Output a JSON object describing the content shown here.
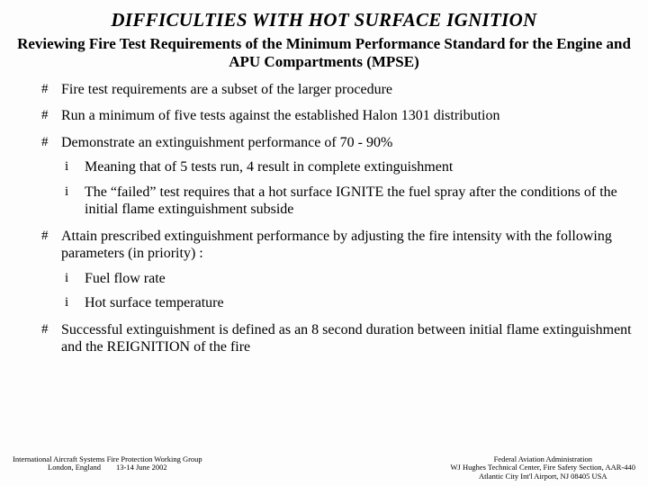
{
  "title": "DIFFICULTIES WITH HOT SURFACE IGNITION",
  "subtitle": "Reviewing Fire Test Requirements of the Minimum Performance Standard for the Engine and APU Compartments (MPSE)",
  "bullets": {
    "glyph_lvl1": "#",
    "glyph_lvl2": "i",
    "items": [
      {
        "text": "Fire test requirements are a subset of the larger procedure"
      },
      {
        "text": "Run a minimum of five tests against the established Halon 1301 distribution"
      },
      {
        "text": "Demonstrate an extinguishment performance of 70 - 90%",
        "sub": [
          {
            "text": "Meaning that of 5 tests run, 4 result in complete extinguishment"
          },
          {
            "text": "The “failed” test requires that a hot surface IGNITE the fuel spray after the conditions of the initial flame extinguishment subside"
          }
        ]
      },
      {
        "text": "Attain prescribed extinguishment performance by adjusting the fire intensity with the following parameters (in priority) :",
        "sub": [
          {
            "text": "Fuel flow rate"
          },
          {
            "text": "Hot surface temperature"
          }
        ]
      },
      {
        "text": "Successful extinguishment is defined as an 8 second duration between initial flame extinguishment and the REIGNITION of the fire"
      }
    ]
  },
  "footer": {
    "left_line1": "International Aircraft Systems Fire Protection Working Group",
    "left_line2": "London, England  13-14 June 2002",
    "right_line1": "Federal Aviation Administration",
    "right_line2": "WJ Hughes Technical Center, Fire Safety Section, AAR-440",
    "right_line3": "Atlantic City Int'l Airport, NJ 08405  USA"
  },
  "colors": {
    "background": "#fdfdfe",
    "text": "#000000"
  },
  "fonts": {
    "title_size_pt": 21,
    "subtitle_size_pt": 17,
    "body_size_pt": 16,
    "footer_size_pt": 8.5
  }
}
